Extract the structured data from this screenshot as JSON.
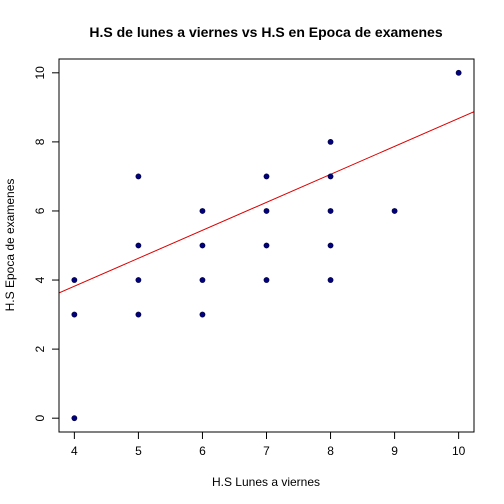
{
  "chart_data": {
    "type": "scatter",
    "title": "H.S de lunes a viernes vs H.S en Epoca de examenes",
    "xlabel": "H.S Lunes a viernes",
    "ylabel": "H.S Epoca de examenes",
    "xlim": [
      4,
      10
    ],
    "ylim": [
      0,
      10
    ],
    "xticks": [
      "4",
      "5",
      "6",
      "7",
      "8",
      "9",
      "10"
    ],
    "yticks": [
      "0",
      "2",
      "4",
      "6",
      "8",
      "10"
    ],
    "grid": false,
    "points": [
      {
        "x": 4,
        "y": 0
      },
      {
        "x": 4,
        "y": 3
      },
      {
        "x": 4,
        "y": 4
      },
      {
        "x": 5,
        "y": 3
      },
      {
        "x": 5,
        "y": 4
      },
      {
        "x": 5,
        "y": 5
      },
      {
        "x": 5,
        "y": 7
      },
      {
        "x": 6,
        "y": 3
      },
      {
        "x": 6,
        "y": 4
      },
      {
        "x": 6,
        "y": 5
      },
      {
        "x": 6,
        "y": 6
      },
      {
        "x": 7,
        "y": 4
      },
      {
        "x": 7,
        "y": 5
      },
      {
        "x": 7,
        "y": 6
      },
      {
        "x": 7,
        "y": 7
      },
      {
        "x": 8,
        "y": 4
      },
      {
        "x": 8,
        "y": 5
      },
      {
        "x": 8,
        "y": 6
      },
      {
        "x": 8,
        "y": 7
      },
      {
        "x": 8,
        "y": 8
      },
      {
        "x": 9,
        "y": 6
      },
      {
        "x": 10,
        "y": 10
      }
    ],
    "trend_line": {
      "intercept": 0.58,
      "slope": 0.81
    },
    "colors": {
      "points": "#000080",
      "trend_line": "#dd0000",
      "axes": "#000000"
    }
  }
}
